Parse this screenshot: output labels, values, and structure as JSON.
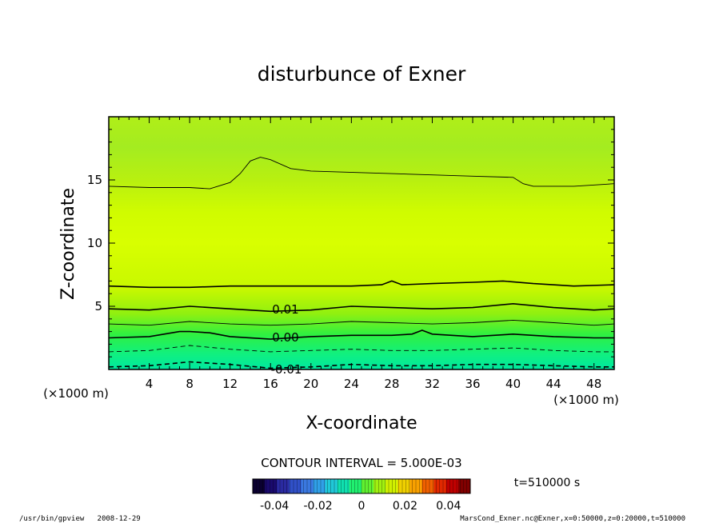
{
  "chart_data": {
    "type": "heatmap",
    "title": "disturbunce of Exner",
    "xlabel": "X-coordinate",
    "ylabel": "Z-coordinate",
    "x_unit": "(×1000 m)",
    "y_unit": "(×1000 m)",
    "xlim": [
      0,
      50
    ],
    "ylim": [
      0,
      20
    ],
    "x_ticks": [
      4,
      8,
      12,
      16,
      20,
      24,
      28,
      32,
      36,
      40,
      44,
      48
    ],
    "y_ticks": [
      5,
      10,
      15
    ],
    "contour_interval_text": "CONTOUR INTERVAL = 5.000E-03",
    "contour_labels": [
      "0.01",
      "0.00",
      "-0.01"
    ],
    "contours": [
      {
        "level": 0.025,
        "x": [
          0,
          4,
          8,
          10,
          12,
          13,
          14,
          15,
          16,
          18,
          20,
          28,
          36,
          40,
          41,
          42,
          46,
          50
        ],
        "z": [
          14.5,
          14.4,
          14.4,
          14.3,
          14.8,
          15.5,
          16.5,
          16.8,
          16.6,
          15.9,
          15.7,
          15.5,
          15.3,
          15.2,
          14.7,
          14.5,
          14.5,
          14.7
        ]
      },
      {
        "level": 0.02,
        "x": [
          0,
          4,
          8,
          12,
          16,
          20,
          24,
          27,
          28,
          29,
          32,
          36,
          39,
          42,
          46,
          50
        ],
        "z": [
          6.6,
          6.5,
          6.5,
          6.6,
          6.6,
          6.6,
          6.6,
          6.7,
          7.0,
          6.7,
          6.8,
          6.9,
          7.0,
          6.8,
          6.6,
          6.7
        ]
      },
      {
        "level": 0.01,
        "x": [
          0,
          4,
          8,
          12,
          16,
          20,
          24,
          28,
          32,
          36,
          40,
          44,
          48,
          50
        ],
        "z": [
          4.8,
          4.7,
          5.0,
          4.8,
          4.6,
          4.7,
          5.0,
          4.9,
          4.8,
          4.9,
          5.2,
          4.9,
          4.7,
          4.8
        ]
      },
      {
        "level": 0.005,
        "x": [
          0,
          4,
          8,
          12,
          16,
          20,
          24,
          28,
          32,
          36,
          40,
          44,
          48,
          50
        ],
        "z": [
          3.6,
          3.5,
          3.8,
          3.6,
          3.5,
          3.6,
          3.8,
          3.7,
          3.6,
          3.7,
          3.9,
          3.7,
          3.5,
          3.6
        ]
      },
      {
        "level": 0.0,
        "x": [
          0,
          4,
          7,
          8,
          10,
          12,
          16,
          20,
          24,
          28,
          30,
          31,
          32,
          36,
          40,
          44,
          48,
          50
        ],
        "z": [
          2.5,
          2.6,
          3.0,
          3.0,
          2.9,
          2.6,
          2.4,
          2.6,
          2.7,
          2.7,
          2.8,
          3.1,
          2.8,
          2.6,
          2.8,
          2.6,
          2.5,
          2.5
        ]
      },
      {
        "level": -0.005,
        "x": [
          0,
          4,
          8,
          12,
          16,
          20,
          24,
          28,
          32,
          36,
          40,
          44,
          48,
          50
        ],
        "z": [
          1.4,
          1.5,
          1.9,
          1.6,
          1.4,
          1.5,
          1.6,
          1.5,
          1.5,
          1.6,
          1.7,
          1.5,
          1.4,
          1.4
        ]
      },
      {
        "level": -0.01,
        "x": [
          0,
          4,
          8,
          12,
          16,
          20,
          24,
          28,
          32,
          36,
          40,
          44,
          48,
          50
        ],
        "z": [
          0.2,
          0.3,
          0.6,
          0.4,
          0.1,
          0.2,
          0.4,
          0.3,
          0.3,
          0.4,
          0.4,
          0.3,
          0.2,
          0.2
        ]
      }
    ],
    "colorbar": {
      "ticks": [
        "-0.04",
        "-0.02",
        "0",
        "0.02",
        "0.04"
      ],
      "range": [
        -0.05,
        0.05
      ],
      "colors": [
        "#0a0030",
        "#1a0a6e",
        "#2a2aa0",
        "#3050c8",
        "#3a78e0",
        "#30a0e8",
        "#20c8d8",
        "#10e0b0",
        "#20f070",
        "#60f030",
        "#a0f010",
        "#d0f000",
        "#f0d000",
        "#f8a000",
        "#f06000",
        "#e02800",
        "#c00000",
        "#800000"
      ]
    },
    "time_text": "t=510000 s"
  },
  "footer": {
    "left": "/usr/bin/gpview   2008-12-29",
    "right": "MarsCond_Exner.nc@Exner,x=0:50000,z=0:20000,t=510000"
  }
}
